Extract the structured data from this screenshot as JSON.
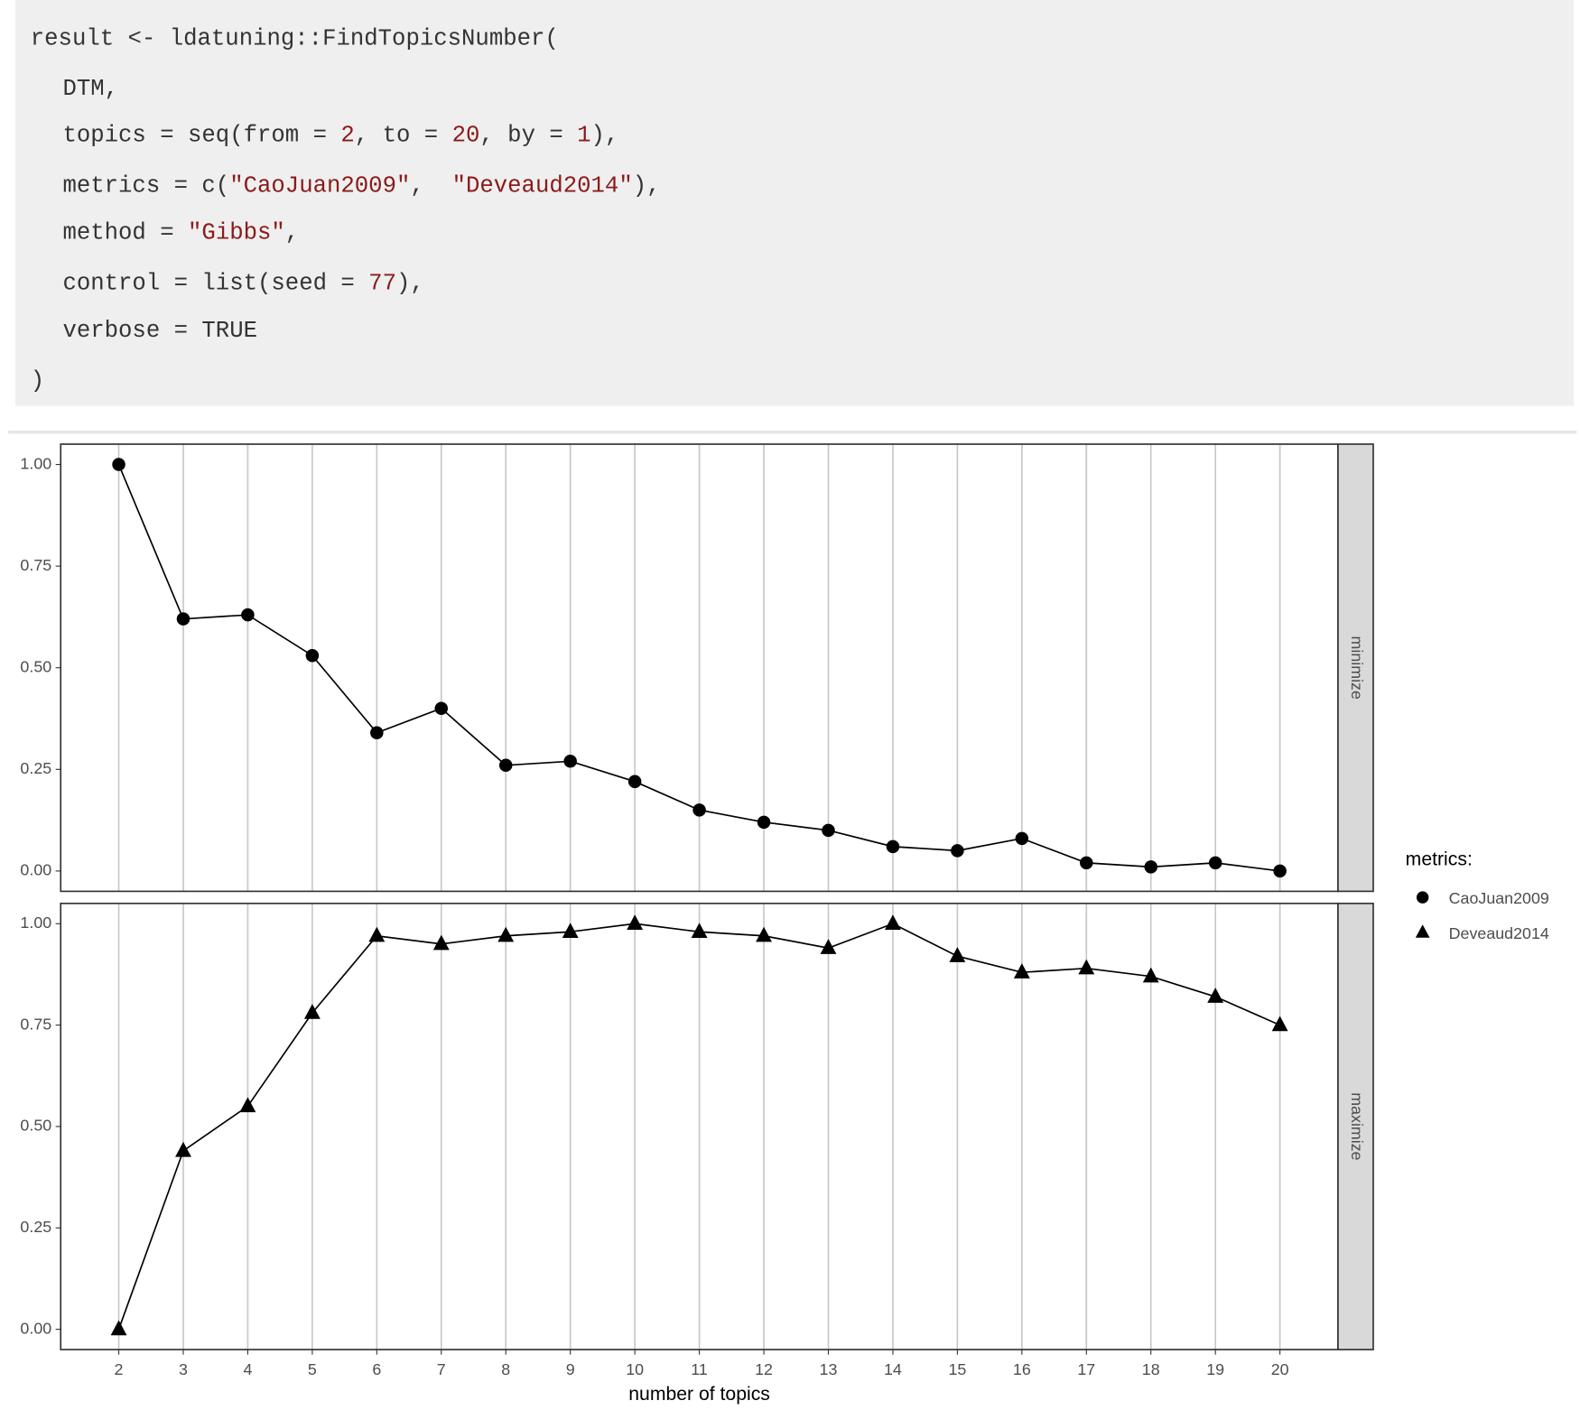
{
  "code": [
    [
      {
        "text": "result <- ldatuning::FindTopicsNumber("
      }
    ],
    [
      {
        "text": "DTM,"
      }
    ],
    [
      {
        "text": "topics = seq(from = "
      },
      {
        "text": "2",
        "color": "#8b1a1a"
      },
      {
        "text": ", to = "
      },
      {
        "text": "20",
        "color": "#8b1a1a"
      },
      {
        "text": ", by = "
      },
      {
        "text": "1",
        "color": "#8b1a1a"
      },
      {
        "text": "),"
      }
    ],
    [
      {
        "text": "metrics = c("
      },
      {
        "text": "\"CaoJuan2009\"",
        "color": "#8b1a1a"
      },
      {
        "text": ",  "
      },
      {
        "text": "\"Deveaud2014\"",
        "color": "#8b1a1a"
      },
      {
        "text": "),"
      }
    ],
    [
      {
        "text": "method = "
      },
      {
        "text": "\"Gibbs\"",
        "color": "#8b1a1a"
      },
      {
        "text": ","
      }
    ],
    [
      {
        "text": "control = list(seed = "
      },
      {
        "text": "77",
        "color": "#8b1a1a"
      },
      {
        "text": "),"
      }
    ],
    [
      {
        "text": "verbose = TRUE"
      }
    ],
    [
      {
        "text": ")"
      }
    ]
  ],
  "legend": {
    "title": "metrics:"
  },
  "chart_data": [
    {
      "type": "line",
      "facet": "minimize",
      "x": [
        2,
        3,
        4,
        5,
        6,
        7,
        8,
        9,
        10,
        11,
        12,
        13,
        14,
        15,
        16,
        17,
        18,
        19,
        20
      ],
      "series": [
        {
          "name": "CaoJuan2009",
          "color": "#000000",
          "marker": "circle",
          "values": [
            1.0,
            0.62,
            0.63,
            0.53,
            0.34,
            0.4,
            0.26,
            0.27,
            0.22,
            0.15,
            0.12,
            0.1,
            0.06,
            0.05,
            0.08,
            0.02,
            0.01,
            0.02,
            0.0
          ]
        }
      ],
      "xlim": [
        1.1,
        20.9
      ],
      "ylim": [
        -0.05,
        1.05
      ],
      "yticks": [
        {
          "value": 0,
          "label": "0.00"
        },
        {
          "value": 0.25,
          "label": "0.25"
        },
        {
          "value": 0.5,
          "label": "0.50"
        },
        {
          "value": 0.75,
          "label": "0.75"
        },
        {
          "value": 1,
          "label": "1.00"
        }
      ]
    },
    {
      "type": "line",
      "facet": "maximize",
      "x": [
        2,
        3,
        4,
        5,
        6,
        7,
        8,
        9,
        10,
        11,
        12,
        13,
        14,
        15,
        16,
        17,
        18,
        19,
        20
      ],
      "series": [
        {
          "name": "Deveaud2014",
          "color": "#000000",
          "marker": "triangle",
          "values": [
            0.0,
            0.44,
            0.55,
            0.78,
            0.97,
            0.95,
            0.97,
            0.98,
            1.0,
            0.98,
            0.97,
            0.94,
            1.0,
            0.92,
            0.88,
            0.89,
            0.87,
            0.82,
            0.75
          ]
        }
      ],
      "xlim": [
        1.1,
        20.9
      ],
      "ylim": [
        -0.05,
        1.05
      ],
      "yticks": [
        {
          "value": 0,
          "label": "0.00"
        },
        {
          "value": 0.25,
          "label": "0.25"
        },
        {
          "value": 0.5,
          "label": "0.50"
        },
        {
          "value": 0.75,
          "label": "0.75"
        },
        {
          "value": 1,
          "label": "1.00"
        }
      ],
      "xticks": [
        2,
        3,
        4,
        5,
        6,
        7,
        8,
        9,
        10,
        11,
        12,
        13,
        14,
        15,
        16,
        17,
        18,
        19,
        20
      ],
      "xlabel": "number of topics",
      "grid": true
    }
  ]
}
